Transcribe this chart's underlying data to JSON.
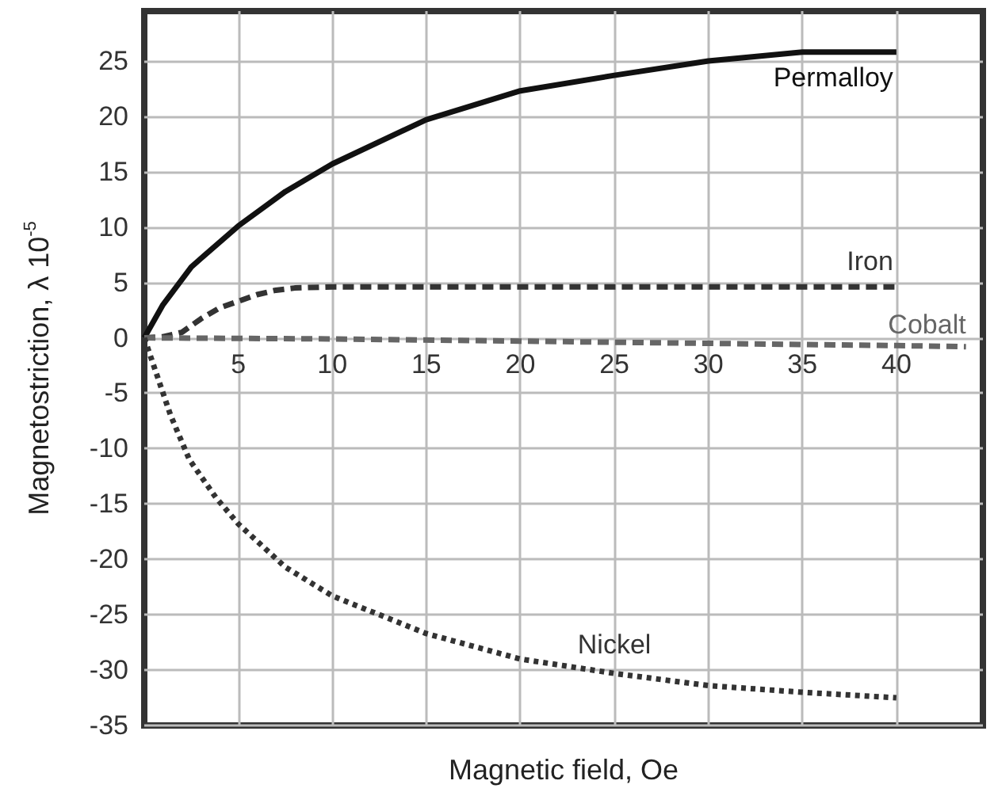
{
  "chart_data": {
    "type": "line",
    "xlabel": "Magnetic field, Oe",
    "ylabel": "Magnetostriction, λ 10$^{-5}$",
    "xlim": [
      0,
      44.6
    ],
    "ylim": [
      -35,
      29.5
    ],
    "xticks": [
      5,
      10,
      15,
      20,
      25,
      30,
      35,
      40
    ],
    "yticks": [
      -35,
      -30,
      -25,
      -20,
      -15,
      -10,
      -5,
      0,
      5,
      10,
      15,
      20,
      25
    ],
    "grid": true,
    "marker": "none",
    "legend": false,
    "series": [
      {
        "name": "Permalloy",
        "color": "#111111",
        "line_style": "solid",
        "x": [
          0,
          1,
          2.5,
          5,
          7.5,
          10,
          15,
          20,
          25,
          30,
          35,
          40
        ],
        "values": [
          0,
          3,
          6.4,
          10.1,
          13.2,
          15.7,
          19.7,
          22.3,
          23.7,
          25,
          25.8,
          25.8
        ]
      },
      {
        "name": "Iron",
        "color": "#333333",
        "line_style": "dashed",
        "x": [
          0,
          1,
          2,
          3,
          4,
          5,
          6,
          7,
          8,
          10,
          20,
          30,
          40
        ],
        "values": [
          0,
          0.1,
          0.5,
          1.7,
          2.7,
          3.3,
          3.9,
          4.3,
          4.5,
          4.6,
          4.6,
          4.6,
          4.6
        ]
      },
      {
        "name": "Cobalt",
        "color": "#666666",
        "line_style": "dashed",
        "x": [
          0,
          10,
          20,
          30,
          40,
          43.7
        ],
        "values": [
          0,
          -0.1,
          -0.3,
          -0.5,
          -0.7,
          -0.8
        ]
      },
      {
        "name": "Nickel",
        "color": "#333333",
        "line_style": "dotted",
        "x": [
          0,
          0.3,
          1.4,
          2.4,
          3.8,
          5,
          7.5,
          10,
          15,
          20,
          25,
          30,
          35,
          40
        ],
        "values": [
          0,
          -1.5,
          -7,
          -11,
          -14.4,
          -16.8,
          -20.7,
          -23.3,
          -26.7,
          -29,
          -30.3,
          -31.4,
          -32,
          -32.5
        ]
      }
    ]
  }
}
